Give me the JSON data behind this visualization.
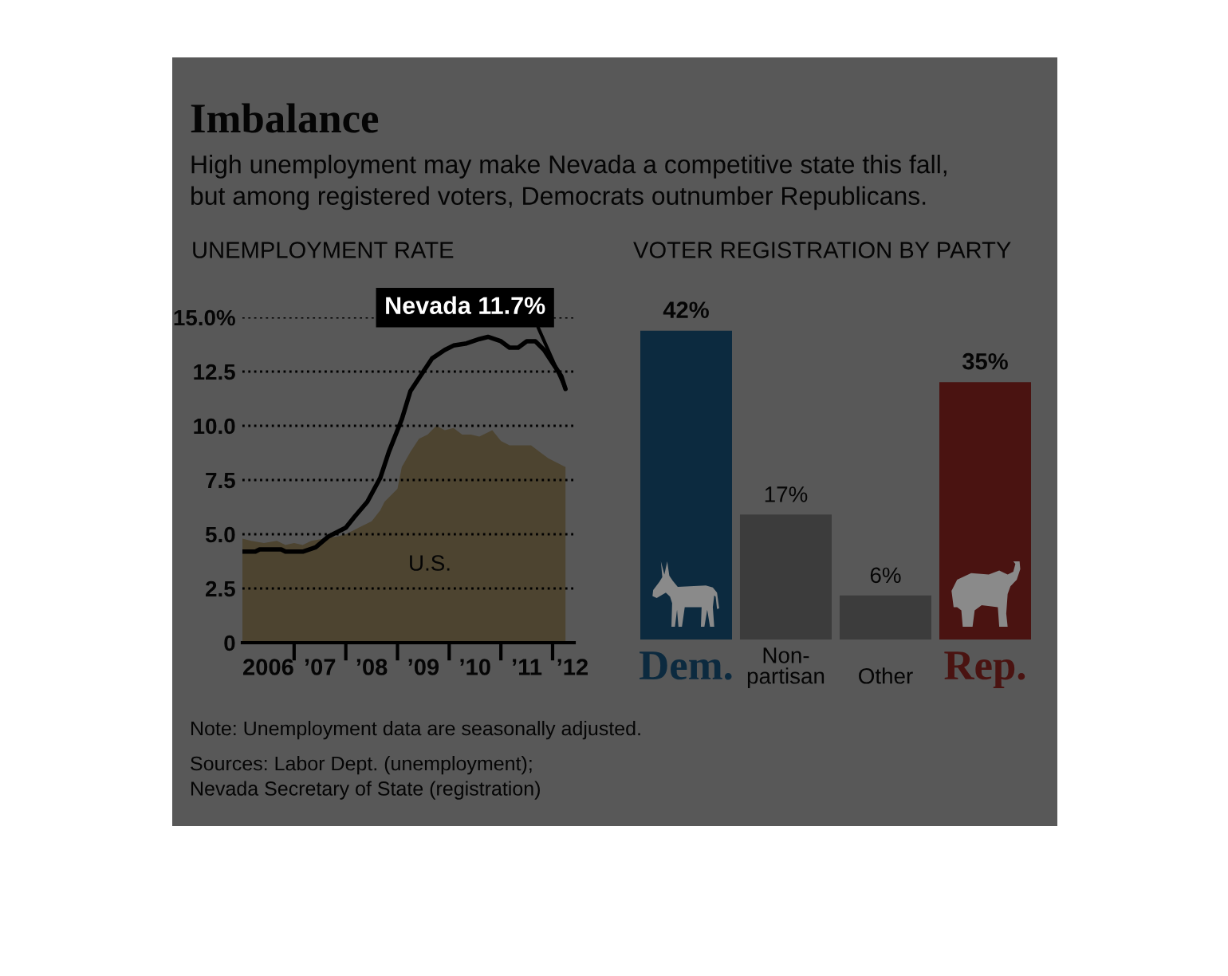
{
  "chart_data": [
    {
      "type": "other",
      "title": "Imbalance",
      "subtitle": "High unemployment may make Nevada a competitive state this fall,\nbut among registered voters, Democrats outnumber Republicans."
    },
    {
      "type": "area",
      "title": "UNEMPLOYMENT RATE",
      "xlim": [
        "2006-01-01",
        "2012-06-01"
      ],
      "xticks": [
        {
          "value": "2006-07-01",
          "label": "2006"
        },
        {
          "value": "2007-01-01",
          "label": null
        },
        {
          "value": "2007-07-01",
          "label": "’07"
        },
        {
          "value": "2008-01-01",
          "label": null
        },
        {
          "value": "2008-07-01",
          "label": "’08"
        },
        {
          "value": "2009-01-01",
          "label": null
        },
        {
          "value": "2009-07-01",
          "label": "’09"
        },
        {
          "value": "2010-01-01",
          "label": null
        },
        {
          "value": "2010-07-01",
          "label": "’10"
        },
        {
          "value": "2011-01-01",
          "label": null
        },
        {
          "value": "2011-07-01",
          "label": "’11"
        },
        {
          "value": "2012-01-01",
          "label": null
        },
        {
          "value": "2012-05-20",
          "label": "’12"
        }
      ],
      "ylim": [
        0,
        15
      ],
      "yticks": [
        0,
        2.5,
        {
          "value": 5,
          "label": "5.0"
        },
        7.5,
        {
          "value": 10,
          "label": "10.0"
        },
        12.5,
        {
          "value": 15,
          "label": "15.0%"
        }
      ],
      "grid": "y",
      "series": [
        {
          "name": "U.S.",
          "type": "area",
          "color": "#4d4430",
          "x": [
            "2006-01",
            "2006-03",
            "2006-06",
            "2006-09",
            "2006-11",
            "2007-01",
            "2007-03",
            "2007-05",
            "2007-08",
            "2007-11",
            "2008-01",
            "2008-04",
            "2008-07",
            "2008-09",
            "2008-10",
            "2009-01",
            "2009-02",
            "2009-04",
            "2009-06",
            "2009-08",
            "2009-10",
            "2009-12",
            "2010-02",
            "2010-04",
            "2010-06",
            "2010-08",
            "2010-10",
            "2010-11",
            "2011-01",
            "2011-03",
            "2011-05",
            "2011-07",
            "2011-08",
            "2011-10",
            "2011-12",
            "2012-02",
            "2012-04"
          ],
          "values": [
            4.8,
            4.7,
            4.6,
            4.7,
            4.5,
            4.6,
            4.5,
            4.7,
            4.8,
            4.9,
            5.0,
            5.3,
            5.6,
            6.1,
            6.5,
            7.1,
            8.1,
            8.8,
            9.4,
            9.6,
            10.0,
            9.8,
            9.9,
            9.6,
            9.6,
            9.5,
            9.7,
            9.8,
            9.3,
            9.1,
            9.1,
            9.1,
            9.1,
            8.8,
            8.5,
            8.3,
            8.1
          ]
        },
        {
          "type": "line",
          "color": "#000000",
          "x": [
            "2006-01",
            "2006-04",
            "2006-05",
            "2006-10",
            "2006-11",
            "2007-03",
            "2007-06",
            "2007-09",
            "2008-01",
            "2008-03",
            "2008-06",
            "2008-09",
            "2008-11",
            "2009-02",
            "2009-04",
            "2009-07",
            "2009-09",
            "2009-12",
            "2010-02",
            "2010-05",
            "2010-08",
            "2010-10",
            "2011-01",
            "2011-03",
            "2011-05",
            "2011-07",
            "2011-09",
            "2011-11",
            "2012-01",
            "2012-03",
            "2012-04"
          ],
          "values": [
            4.2,
            4.2,
            4.3,
            4.3,
            4.2,
            4.2,
            4.4,
            4.9,
            5.3,
            5.8,
            6.5,
            7.6,
            8.8,
            10.3,
            11.6,
            12.5,
            13.1,
            13.5,
            13.7,
            13.8,
            14.0,
            14.1,
            13.9,
            13.6,
            13.6,
            13.9,
            13.9,
            13.5,
            12.9,
            12.3,
            11.7
          ]
        }
      ],
      "annotations": [
        {
          "text": "Nevada 11.7%",
          "x": "2012-04",
          "y": 11.7
        }
      ]
    },
    {
      "type": "bar",
      "title": "VOTER REGISTRATION BY PARTY",
      "categories": [
        "Dem.",
        "Non-\npartisan",
        "Other",
        "Rep."
      ],
      "values": [
        42,
        17,
        6,
        35
      ],
      "colors": [
        "#0c2a3f",
        "#3c3c3c",
        "#3c3c3c",
        "#4a1311"
      ],
      "value_labels": [
        "42%",
        "17%",
        "6%",
        "35%"
      ]
    },
    {
      "type": "other",
      "annotations": [
        "Note: Unemployment data are seasonally adjusted.",
        "Sources: Labor Dept. (unemployment);\nNevada Secretary of State (registration)"
      ]
    }
  ]
}
